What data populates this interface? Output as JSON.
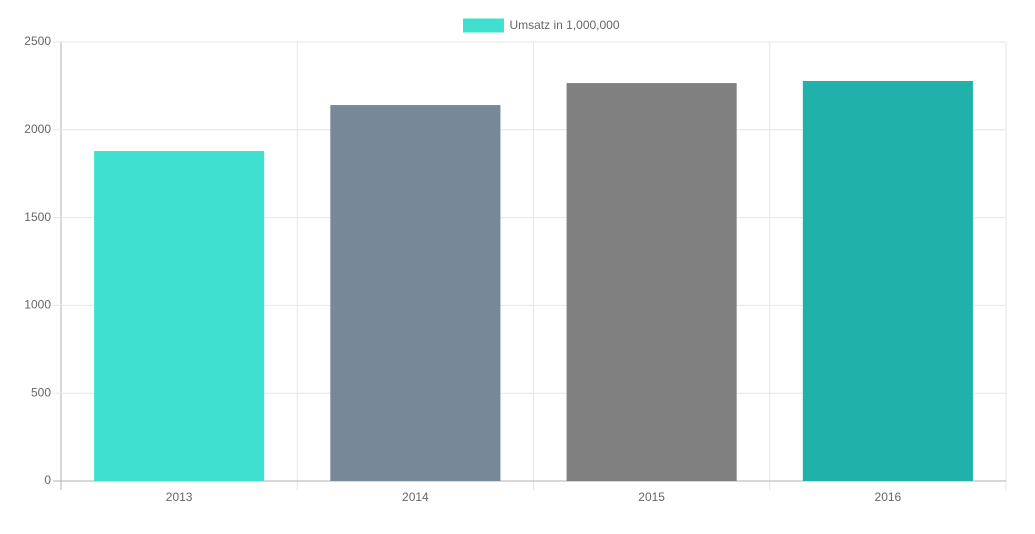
{
  "chart_data": {
    "type": "bar",
    "categories": [
      "2013",
      "2014",
      "2015",
      "2016"
    ],
    "series": [
      {
        "name": "Umsatz in 1,000,000",
        "colors": [
          "#40e0d0",
          "#778899",
          "#808080",
          "#20b2aa"
        ],
        "values": [
          1879,
          2141,
          2266,
          2278
        ]
      }
    ],
    "ylim": [
      0,
      2500
    ],
    "yticks": [
      0,
      500,
      1000,
      1500,
      2000,
      2500
    ],
    "grid": true,
    "legend": "top"
  }
}
